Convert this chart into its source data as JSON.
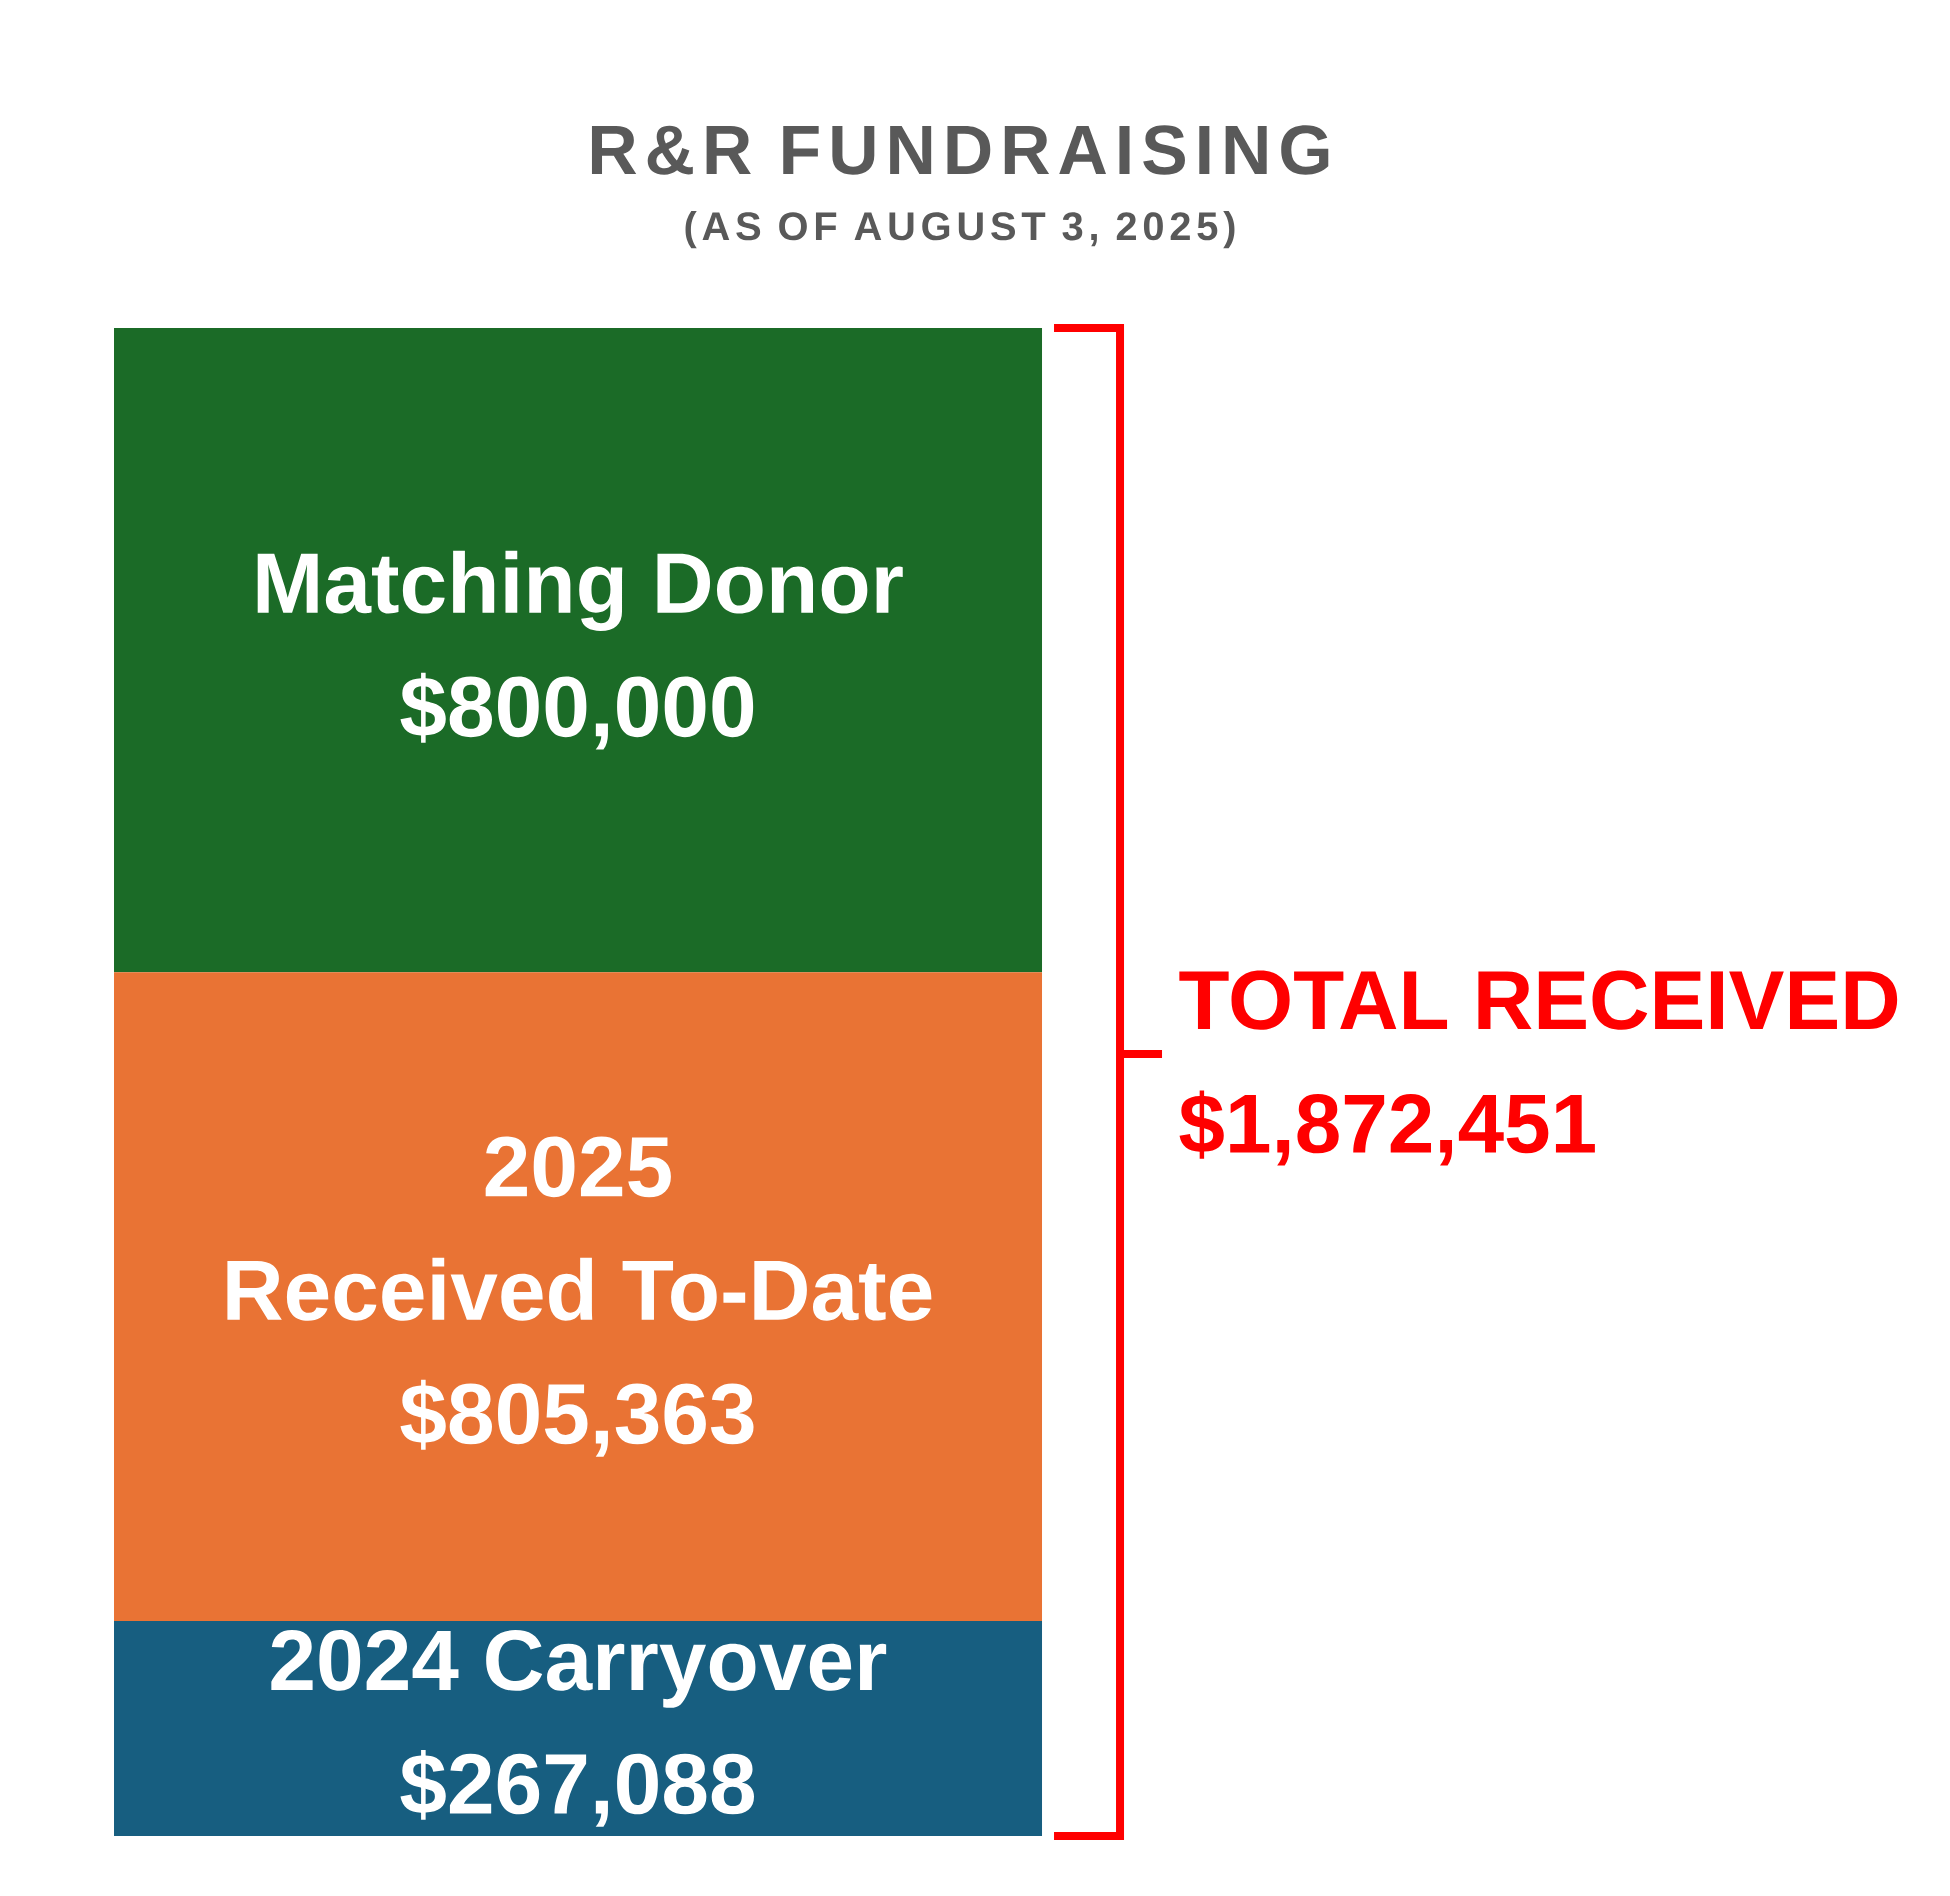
{
  "chart_data": {
    "type": "bar",
    "title": "R&R FUNDRAISING",
    "subtitle": "(AS OF AUGUST 3, 2025)",
    "stacked": true,
    "tick_labels": false,
    "categories": [
      null
    ],
    "series": [
      {
        "name": "2024 Carryover",
        "color": "#175e80",
        "values": [
          267088
        ],
        "value_labels": [
          "$267,088"
        ]
      },
      {
        "name": "2025 Received To-Date",
        "color": "#e97334",
        "values": [
          805363
        ],
        "value_labels": [
          "$805,363"
        ]
      },
      {
        "name": "Matching Donor",
        "color": "#1b6b27",
        "values": [
          800000
        ],
        "value_labels": [
          "$800,000"
        ]
      }
    ],
    "totals": [
      "$1,872,451"
    ],
    "annotations": [
      "TOTAL RECEIVED"
    ]
  }
}
